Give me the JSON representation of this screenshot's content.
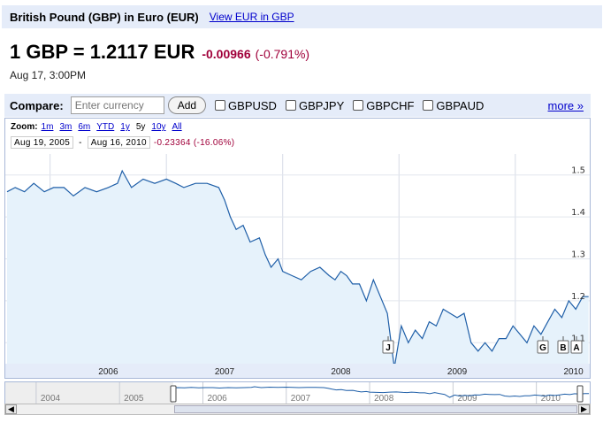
{
  "header": {
    "title": "British Pound (GBP) in Euro (EUR)",
    "inverse_link": "View EUR in GBP"
  },
  "quote": {
    "price": "1 GBP = 1.2117 EUR",
    "change": "-0.00966",
    "change_pct": "(-0.791%)",
    "timestamp": "Aug 17, 3:00PM"
  },
  "compare": {
    "label": "Compare:",
    "placeholder": "Enter currency",
    "add_label": "Add",
    "pairs": [
      "GBPUSD",
      "GBPJPY",
      "GBPCHF",
      "GBPAUD"
    ],
    "more_label": "more »"
  },
  "zoom": {
    "label": "Zoom:",
    "options": [
      "1m",
      "3m",
      "6m",
      "YTD",
      "1y",
      "5y",
      "10y",
      "All"
    ],
    "selected": "5y"
  },
  "range": {
    "start": "Aug 19, 2005",
    "separator": "-",
    "end": "Aug 16, 2010",
    "change": "-0.23364 (-16.06%)"
  },
  "markers": [
    "J",
    "G",
    "B",
    "A"
  ],
  "navigator": {
    "years": [
      "2004",
      "2005",
      "2006",
      "2007",
      "2008",
      "2009",
      "2010"
    ]
  },
  "colors": {
    "line": "#1f5fa8",
    "fill": "#e6f2fb",
    "negative": "#a0003a",
    "link": "#0000cc",
    "band": "#e5ecf9"
  },
  "chart_data": {
    "type": "area",
    "title": "",
    "xlabel": "",
    "ylabel": "",
    "x_ticks": [
      "2006",
      "2007",
      "2008",
      "2009",
      "2010"
    ],
    "y_ticks": [
      1.1,
      1.2,
      1.3,
      1.4,
      1.5
    ],
    "ylim": [
      1.05,
      1.55
    ],
    "series": [
      {
        "x": [
          2005.63,
          2005.7,
          2005.78,
          2005.86,
          2005.95,
          2006.03,
          2006.12,
          2006.2,
          2006.3,
          2006.4,
          2006.5,
          2006.58,
          2006.62,
          2006.7,
          2006.8,
          2006.9,
          2007.0,
          2007.08,
          2007.15,
          2007.25,
          2007.35,
          2007.45,
          2007.5,
          2007.55,
          2007.6,
          2007.66,
          2007.72,
          2007.8,
          2007.85,
          2007.9,
          2007.96,
          2008.0,
          2008.08,
          2008.16,
          2008.24,
          2008.32,
          2008.4,
          2008.45,
          2008.5,
          2008.55,
          2008.6,
          2008.66,
          2008.72,
          2008.78,
          2008.84,
          2008.9,
          2008.96,
          2009.02,
          2009.08,
          2009.14,
          2009.2,
          2009.26,
          2009.32,
          2009.38,
          2009.44,
          2009.5,
          2009.56,
          2009.62,
          2009.68,
          2009.74,
          2009.8,
          2009.86,
          2009.92,
          2009.98,
          2010.04,
          2010.1,
          2010.16,
          2010.22,
          2010.28,
          2010.34,
          2010.4,
          2010.46,
          2010.52,
          2010.58,
          2010.63
        ],
        "values": [
          1.46,
          1.47,
          1.46,
          1.48,
          1.46,
          1.47,
          1.47,
          1.45,
          1.47,
          1.46,
          1.47,
          1.48,
          1.51,
          1.47,
          1.49,
          1.48,
          1.49,
          1.48,
          1.47,
          1.48,
          1.48,
          1.47,
          1.44,
          1.4,
          1.37,
          1.38,
          1.34,
          1.35,
          1.31,
          1.28,
          1.3,
          1.27,
          1.26,
          1.25,
          1.27,
          1.28,
          1.26,
          1.25,
          1.27,
          1.26,
          1.24,
          1.24,
          1.2,
          1.25,
          1.21,
          1.17,
          1.04,
          1.14,
          1.1,
          1.13,
          1.11,
          1.15,
          1.14,
          1.18,
          1.17,
          1.16,
          1.17,
          1.1,
          1.08,
          1.1,
          1.08,
          1.11,
          1.11,
          1.14,
          1.12,
          1.1,
          1.14,
          1.12,
          1.15,
          1.18,
          1.16,
          1.2,
          1.18,
          1.21,
          1.21
        ]
      }
    ],
    "grid": true,
    "y_axis_side": "right"
  }
}
